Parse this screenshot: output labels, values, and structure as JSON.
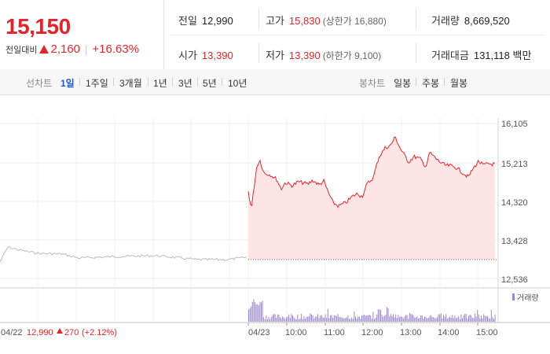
{
  "quote": {
    "price": "15,150",
    "change_label": "전일대비",
    "change": "2,160",
    "change_pct": "+16.63%"
  },
  "stats": {
    "prev_close_label": "전일",
    "prev_close": "12,990",
    "high_label": "고가",
    "high": "15,830",
    "upper_limit": "(상한가 16,880)",
    "volume_label": "거래량",
    "volume": "8,669,520",
    "open_label": "시가",
    "open": "13,390",
    "low_label": "저가",
    "low": "13,390",
    "lower_limit": "(하한가 9,100)",
    "amount_label": "거래대금",
    "amount": "131,118 백만"
  },
  "tabs": {
    "line_label": "선차트",
    "line": [
      "1일",
      "1주일",
      "3개월",
      "1년",
      "3년",
      "5년",
      "10년"
    ],
    "line_active": "1일",
    "candle_label": "봉차트",
    "candle": [
      "일봉",
      "주봉",
      "월봉"
    ]
  },
  "chart": {
    "y_ticks": [
      "16,105",
      "15,213",
      "14,320",
      "13,428",
      "12,536"
    ],
    "volume_legend": "거래량",
    "x_ticks": [
      "04/23",
      "10:00",
      "11:00",
      "12:00",
      "13:00",
      "14:00",
      "15:00"
    ],
    "prev_day": {
      "date": "04/22",
      "close": "12,990",
      "change": "270",
      "pct": "(+2.12%)"
    },
    "colors": {
      "line": "#e4282d",
      "fill": "#fde4e5",
      "prev": "#bbbbbb",
      "volume": "#9b88c9"
    }
  }
}
